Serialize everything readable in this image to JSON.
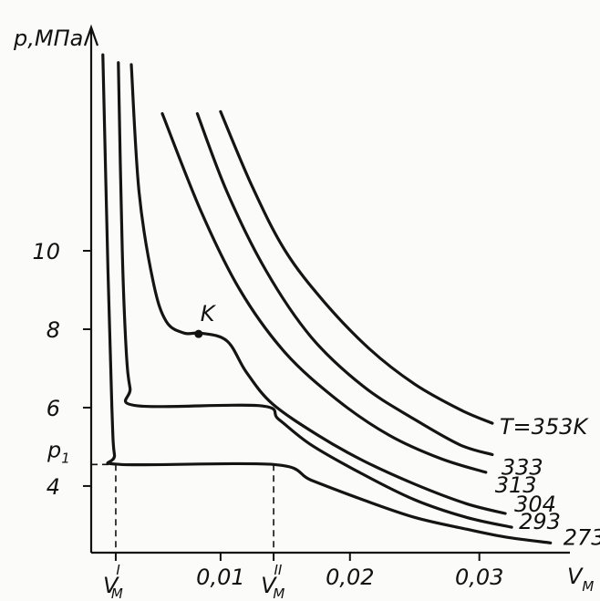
{
  "chart_data": {
    "type": "line",
    "title": "",
    "ylabel": "p,МПа",
    "xlabel": "V",
    "xlabel_sub": "M",
    "xlim": [
      0,
      0.037
    ],
    "ylim": [
      2.3,
      15.7
    ],
    "yticks": [
      {
        "value": 4,
        "label": "4"
      },
      {
        "value": 6,
        "label": "6"
      },
      {
        "value": 8,
        "label": "8"
      },
      {
        "value": 10,
        "label": "10"
      }
    ],
    "xticks": [
      {
        "value": 0.01,
        "label": "0,01"
      },
      {
        "value": 0.02,
        "label": "0,02"
      },
      {
        "value": 0.03,
        "label": "0,03"
      }
    ],
    "p1": {
      "value": 4.55,
      "label": "p",
      "sub": "1"
    },
    "v_marks": [
      {
        "value": 0.0019,
        "label": "V",
        "sub": "M",
        "sup": "I"
      },
      {
        "value": 0.0141,
        "label": "V",
        "sub": "M",
        "sup": "II"
      }
    ],
    "critical_point": {
      "label": "K",
      "x": 0.0083,
      "y": 7.88
    },
    "series": [
      {
        "name": "273",
        "label": "273",
        "points": [
          [
            0.0009,
            15.0
          ],
          [
            0.0013,
            9.5
          ],
          [
            0.0016,
            6.0
          ],
          [
            0.0018,
            4.8
          ],
          [
            0.0023,
            4.55
          ],
          [
            0.0141,
            4.55
          ],
          [
            0.017,
            4.15
          ],
          [
            0.021,
            3.65
          ],
          [
            0.025,
            3.2
          ],
          [
            0.029,
            2.9
          ],
          [
            0.032,
            2.7
          ],
          [
            0.0355,
            2.55
          ]
        ]
      },
      {
        "name": "293",
        "label": "293",
        "points": [
          [
            0.0021,
            14.8
          ],
          [
            0.0024,
            10.0
          ],
          [
            0.0027,
            7.5
          ],
          [
            0.003,
            6.5
          ],
          [
            0.0035,
            6.05
          ],
          [
            0.013,
            6.05
          ],
          [
            0.0145,
            5.7
          ],
          [
            0.017,
            5.05
          ],
          [
            0.021,
            4.3
          ],
          [
            0.025,
            3.65
          ],
          [
            0.029,
            3.2
          ],
          [
            0.0325,
            2.95
          ]
        ]
      },
      {
        "name": "304",
        "label": "304",
        "points": [
          [
            0.0031,
            14.75
          ],
          [
            0.0037,
            11.5
          ],
          [
            0.0048,
            9.2
          ],
          [
            0.0058,
            8.2
          ],
          [
            0.0072,
            7.9
          ],
          [
            0.0085,
            7.9
          ],
          [
            0.0105,
            7.7
          ],
          [
            0.012,
            6.9
          ],
          [
            0.014,
            6.1
          ],
          [
            0.0175,
            5.3
          ],
          [
            0.021,
            4.65
          ],
          [
            0.025,
            4.05
          ],
          [
            0.029,
            3.55
          ],
          [
            0.032,
            3.3
          ]
        ]
      },
      {
        "name": "313",
        "label": "313",
        "points": [
          [
            0.0055,
            13.5
          ],
          [
            0.0085,
            11.0
          ],
          [
            0.0115,
            9.0
          ],
          [
            0.015,
            7.4
          ],
          [
            0.019,
            6.2
          ],
          [
            0.023,
            5.3
          ],
          [
            0.027,
            4.7
          ],
          [
            0.0305,
            4.35
          ]
        ]
      },
      {
        "name": "333",
        "label": "333",
        "points": [
          [
            0.0082,
            13.5
          ],
          [
            0.0105,
            11.5
          ],
          [
            0.0135,
            9.5
          ],
          [
            0.017,
            7.8
          ],
          [
            0.021,
            6.55
          ],
          [
            0.025,
            5.7
          ],
          [
            0.0285,
            5.05
          ],
          [
            0.031,
            4.8
          ]
        ]
      },
      {
        "name": "353",
        "label": "T=353K",
        "points": [
          [
            0.01,
            13.55
          ],
          [
            0.0125,
            11.6
          ],
          [
            0.015,
            10.0
          ],
          [
            0.018,
            8.7
          ],
          [
            0.0215,
            7.5
          ],
          [
            0.025,
            6.6
          ],
          [
            0.0285,
            5.95
          ],
          [
            0.031,
            5.6
          ]
        ]
      }
    ]
  }
}
